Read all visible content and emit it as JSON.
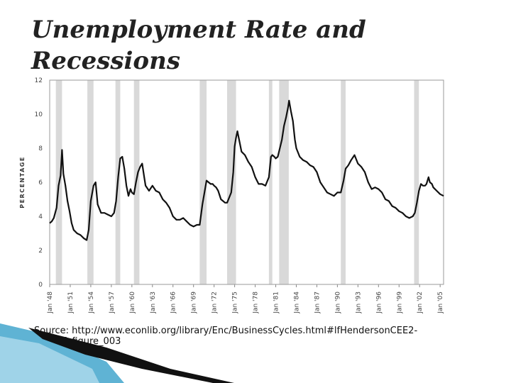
{
  "slide": {
    "title_line1": "Unemployment Rate and",
    "title_line2": "Recessions",
    "source_line1": "Source: http://www.econlib.org/library/Enc/BusinessCycles.html#lfHendersonCEE2-",
    "source_line2": "017_figure_003"
  },
  "colors": {
    "line": "#111111",
    "recession_band": "#d9d9d9",
    "accent_blue": "#5fb3d4"
  },
  "chart_data": {
    "type": "line",
    "title": "",
    "xlabel": "",
    "ylabel": "PERCENTAGE",
    "ylim": [
      0,
      12
    ],
    "y_ticks": [
      "0",
      "2",
      "4",
      "6",
      "8",
      "10",
      "12"
    ],
    "x_ticks": [
      "Jan '48",
      "Jan '51",
      "Jan '54",
      "Jan '57",
      "Jan '60",
      "Jan '63",
      "Jan '66",
      "Jan '69",
      "Jan '72",
      "Jan '75",
      "Jan '78",
      "Jan '81",
      "Jan '84",
      "Jan '87",
      "Jan '90",
      "Jan '93",
      "Jan '96",
      "Jan '99",
      "Jan '02",
      "Jan '05"
    ],
    "x_range": [
      1948.0,
      2005.5
    ],
    "grid": false,
    "recessions": [
      [
        1948.9,
        1949.8
      ],
      [
        1953.5,
        1954.4
      ],
      [
        1957.6,
        1958.3
      ],
      [
        1960.3,
        1961.1
      ],
      [
        1969.9,
        1970.9
      ],
      [
        1973.9,
        1975.2
      ],
      [
        1980.0,
        1980.5
      ],
      [
        1981.5,
        1982.9
      ],
      [
        1990.5,
        1991.2
      ],
      [
        2001.2,
        2001.9
      ]
    ],
    "series": [
      {
        "x": [
          1948.0,
          1948.3,
          1948.6,
          1949.0,
          1949.3,
          1949.6,
          1949.8,
          1950.0,
          1950.3,
          1950.6,
          1950.9,
          1951.2,
          1951.5,
          1952.0,
          1952.5,
          1953.0,
          1953.4,
          1953.7,
          1954.0,
          1954.4,
          1954.7,
          1955.0,
          1955.5,
          1956.0,
          1956.5,
          1957.0,
          1957.4,
          1957.7,
          1958.0,
          1958.3,
          1958.6,
          1958.9,
          1959.2,
          1959.5,
          1959.8,
          1960.0,
          1960.3,
          1960.6,
          1960.9,
          1961.2,
          1961.5,
          1961.8,
          1962.0,
          1962.5,
          1963.0,
          1963.5,
          1964.0,
          1964.5,
          1965.0,
          1965.5,
          1966.0,
          1966.5,
          1967.0,
          1967.5,
          1968.0,
          1968.5,
          1969.0,
          1969.5,
          1969.9,
          1970.3,
          1970.6,
          1970.9,
          1971.2,
          1971.5,
          1971.8,
          1972.0,
          1972.3,
          1972.6,
          1973.0,
          1973.3,
          1973.6,
          1973.9,
          1974.2,
          1974.5,
          1974.8,
          1975.0,
          1975.2,
          1975.4,
          1975.7,
          1976.0,
          1976.5,
          1977.0,
          1977.5,
          1978.0,
          1978.5,
          1979.0,
          1979.5,
          1980.0,
          1980.3,
          1980.5,
          1980.8,
          1981.0,
          1981.3,
          1981.6,
          1981.9,
          1982.2,
          1982.5,
          1982.8,
          1982.95,
          1983.2,
          1983.5,
          1983.8,
          1984.0,
          1984.5,
          1985.0,
          1985.5,
          1986.0,
          1986.5,
          1987.0,
          1987.5,
          1988.0,
          1988.5,
          1989.0,
          1989.5,
          1990.0,
          1990.5,
          1990.9,
          1991.2,
          1991.6,
          1992.0,
          1992.5,
          1993.0,
          1993.5,
          1994.0,
          1994.5,
          1995.0,
          1995.5,
          1996.0,
          1996.5,
          1997.0,
          1997.5,
          1998.0,
          1998.5,
          1999.0,
          1999.5,
          2000.0,
          2000.5,
          2001.0,
          2001.3,
          2001.6,
          2001.9,
          2002.2,
          2002.5,
          2002.8,
          2003.0,
          2003.3,
          2003.5,
          2003.8,
          2004.0,
          2004.5,
          2005.0,
          2005.5
        ],
        "values": [
          3.6,
          3.7,
          3.9,
          4.5,
          5.8,
          6.4,
          7.9,
          6.5,
          5.8,
          4.9,
          4.3,
          3.6,
          3.2,
          3.0,
          2.9,
          2.7,
          2.6,
          3.2,
          4.9,
          5.8,
          6.0,
          4.7,
          4.2,
          4.2,
          4.1,
          4.0,
          4.2,
          4.9,
          6.3,
          7.4,
          7.5,
          6.8,
          5.8,
          5.2,
          5.6,
          5.4,
          5.3,
          6.0,
          6.6,
          6.9,
          7.1,
          6.3,
          5.8,
          5.5,
          5.8,
          5.5,
          5.4,
          5.0,
          4.8,
          4.5,
          4.0,
          3.8,
          3.8,
          3.9,
          3.7,
          3.5,
          3.4,
          3.5,
          3.5,
          4.7,
          5.4,
          6.1,
          6.0,
          5.9,
          5.9,
          5.8,
          5.7,
          5.5,
          5.0,
          4.9,
          4.8,
          4.8,
          5.1,
          5.4,
          6.6,
          8.1,
          8.6,
          9.0,
          8.4,
          7.8,
          7.6,
          7.2,
          6.9,
          6.3,
          5.9,
          5.9,
          5.8,
          6.3,
          7.5,
          7.6,
          7.5,
          7.4,
          7.5,
          8.0,
          8.5,
          9.3,
          9.8,
          10.4,
          10.8,
          10.2,
          9.6,
          8.5,
          8.0,
          7.5,
          7.3,
          7.2,
          7.0,
          6.9,
          6.6,
          6.0,
          5.7,
          5.4,
          5.3,
          5.2,
          5.4,
          5.4,
          6.1,
          6.8,
          7.0,
          7.3,
          7.6,
          7.1,
          6.9,
          6.6,
          6.0,
          5.6,
          5.7,
          5.6,
          5.4,
          5.0,
          4.9,
          4.6,
          4.5,
          4.3,
          4.2,
          4.0,
          3.9,
          4.0,
          4.2,
          4.8,
          5.5,
          5.9,
          5.8,
          5.8,
          5.9,
          6.3,
          6.0,
          5.9,
          5.7,
          5.5,
          5.3,
          5.2
        ]
      }
    ]
  }
}
